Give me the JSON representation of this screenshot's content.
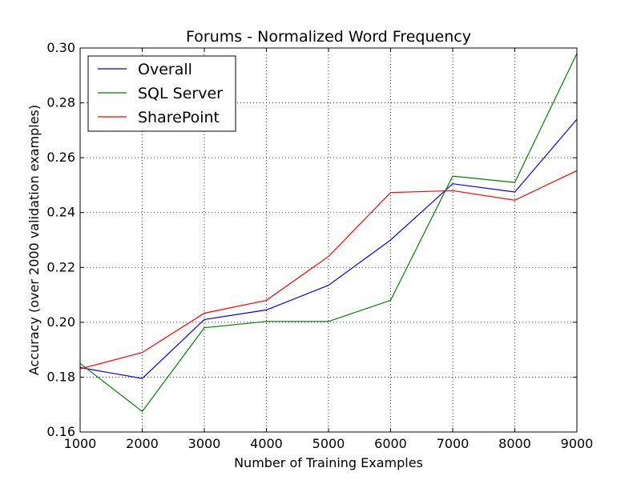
{
  "chart_data": {
    "type": "line",
    "title": "Forums - Normalized Word Frequency",
    "xlabel": "Number of Training Examples",
    "ylabel": "Accuracy (over 2000 validation examples)",
    "xlim": [
      1000,
      9000
    ],
    "ylim": [
      0.16,
      0.3
    ],
    "xticks": [
      1000,
      2000,
      3000,
      4000,
      5000,
      6000,
      7000,
      8000,
      9000
    ],
    "xtick_labels": [
      "1000",
      "2000",
      "3000",
      "4000",
      "5000",
      "6000",
      "7000",
      "8000",
      "9000"
    ],
    "yticks": [
      0.16,
      0.18,
      0.2,
      0.22,
      0.24,
      0.26,
      0.28,
      0.3
    ],
    "ytick_labels": [
      "0.16",
      "0.18",
      "0.20",
      "0.22",
      "0.24",
      "0.26",
      "0.28",
      "0.30"
    ],
    "grid": true,
    "legend_position": "top-left",
    "x": [
      1000,
      2000,
      3000,
      4000,
      5000,
      6000,
      7000,
      8000,
      9000
    ],
    "series": [
      {
        "name": "Overall",
        "color": "#0000ff",
        "values": [
          0.1835,
          0.1795,
          0.201,
          0.2045,
          0.2135,
          0.23,
          0.2505,
          0.2475,
          0.274
        ]
      },
      {
        "name": "SQL Server",
        "color": "#008000",
        "values": [
          0.185,
          0.1675,
          0.198,
          0.2003,
          0.2003,
          0.208,
          0.2533,
          0.251,
          0.298
        ]
      },
      {
        "name": "SharePoint",
        "color": "#ff0000",
        "values": [
          0.183,
          0.189,
          0.2033,
          0.208,
          0.224,
          0.2473,
          0.248,
          0.2445,
          0.2553
        ]
      }
    ]
  }
}
